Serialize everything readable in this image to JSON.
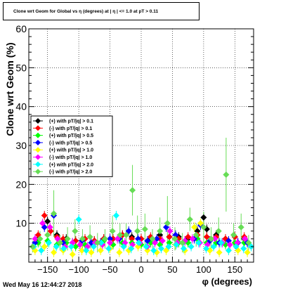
{
  "title": "Clone wrt Geom for Global vs η (degrees) at | η | <= 1.0 at pT > 0.11",
  "footer": "Wed May 16 12:44:27 2018",
  "chart_data": {
    "type": "scatter",
    "xlabel": "φ (degrees)",
    "ylabel": "Clone wrt Geom (%)",
    "xlim": [
      -180,
      180
    ],
    "ylim": [
      0,
      60
    ],
    "xticks": [
      -150,
      -100,
      -50,
      0,
      50,
      100,
      150
    ],
    "yticks": [
      10,
      20,
      30,
      40,
      50,
      60
    ],
    "grid": true,
    "legend_position": "left-middle",
    "series": [
      {
        "name": "(+) with pT/|q| > 0.1",
        "color": "#000000",
        "x": [
          -165,
          -150,
          -135,
          -120,
          -105,
          -90,
          -75,
          -60,
          -45,
          -30,
          -15,
          0,
          15,
          30,
          45,
          60,
          75,
          90,
          100,
          105,
          120,
          135,
          150,
          165
        ],
        "y": [
          6,
          10.5,
          7,
          6,
          5.5,
          6,
          5.5,
          6,
          6,
          7,
          6.5,
          6,
          6,
          7,
          6.5,
          6.5,
          6,
          8,
          11.5,
          8.5,
          7,
          6,
          6.5,
          6
        ]
      },
      {
        "name": "(-) with pT/|q| > 0.1",
        "color": "#ff0000",
        "x": [
          -165,
          -155,
          -145,
          -135,
          -125,
          -105,
          -90,
          -75,
          -60,
          -45,
          -30,
          -15,
          0,
          15,
          30,
          45,
          60,
          75,
          90,
          105,
          120,
          135,
          150,
          165
        ],
        "y": [
          7,
          12,
          8,
          6.5,
          6,
          5.5,
          6,
          5.5,
          6,
          6,
          7,
          6,
          6,
          6.5,
          6,
          6.5,
          6,
          6.5,
          7,
          6.5,
          6.5,
          6,
          6.5,
          6.5
        ]
      },
      {
        "name": "(+) with pT/|q| > 0.5",
        "color": "#00ff00",
        "x": [
          -165,
          -150,
          -135,
          -120,
          -105,
          -90,
          -75,
          -60,
          -45,
          -30,
          -15,
          0,
          15,
          30,
          45,
          60,
          75,
          90,
          105,
          120,
          135,
          150,
          165
        ],
        "y": [
          5,
          5.5,
          4.5,
          5,
          4,
          4.5,
          5,
          5.5,
          4.5,
          5,
          5,
          4.5,
          5,
          4.5,
          5,
          5,
          5,
          6,
          5,
          5,
          4.5,
          5,
          5
        ]
      },
      {
        "name": "(-) with pT/|q| > 0.5",
        "color": "#0000ff",
        "x": [
          -170,
          -155,
          -140,
          -125,
          -110,
          -95,
          -80,
          -65,
          -50,
          -35,
          -20,
          -5,
          10,
          25,
          40,
          55,
          70,
          85,
          95,
          110,
          125,
          140,
          155,
          170
        ],
        "y": [
          5,
          9,
          12,
          5,
          5,
          5.5,
          5,
          5,
          6,
          6,
          8,
          6,
          5.5,
          6,
          9,
          7,
          5.5,
          6,
          9.5,
          5.5,
          5,
          5.5,
          5,
          5
        ]
      },
      {
        "name": "(+) with pT/|q| > 1.0",
        "color": "#ffff00",
        "x": [
          -170,
          -155,
          -140,
          -125,
          -110,
          -95,
          -80,
          -65,
          -50,
          -35,
          -20,
          -5,
          10,
          25,
          40,
          55,
          70,
          85,
          95,
          110,
          125,
          140,
          155,
          170
        ],
        "y": [
          3,
          4,
          2.5,
          3,
          2,
          3,
          2.5,
          3,
          3.5,
          2.5,
          3,
          4,
          3,
          2.5,
          3,
          4.5,
          3,
          9,
          10,
          3,
          2.5,
          3,
          3,
          2.5
        ]
      },
      {
        "name": "(-) with pT/|q| > 1.0",
        "color": "#ff00ff",
        "x": [
          -170,
          -158,
          -146,
          -134,
          -122,
          -110,
          -98,
          -86,
          -74,
          -62,
          -50,
          -38,
          -26,
          -14,
          -2,
          10,
          22,
          34,
          46,
          58,
          70,
          82,
          94,
          106,
          118,
          130,
          142,
          154,
          166
        ],
        "y": [
          6,
          10,
          9,
          6,
          4,
          5,
          4.5,
          4,
          5,
          4.5,
          5,
          6,
          5,
          4.5,
          5,
          4,
          5,
          5.5,
          8,
          5,
          5.5,
          6,
          5,
          4.5,
          6,
          5,
          4.5,
          5,
          6
        ]
      },
      {
        "name": "(+) with pT/|q| > 2.0",
        "color": "#00ffff",
        "x": [
          -172,
          -160,
          -148,
          -136,
          -124,
          -112,
          -100,
          -88,
          -76,
          -64,
          -52,
          -40,
          -28,
          -16,
          -4,
          8,
          20,
          32,
          44,
          56,
          68,
          80,
          92,
          104,
          116,
          128,
          140,
          152,
          164,
          176
        ],
        "y": [
          4,
          3,
          5,
          4,
          3.5,
          4,
          11,
          3,
          4,
          5,
          3.5,
          12,
          4,
          3.5,
          5,
          4,
          3,
          3.5,
          4,
          4.5,
          3.5,
          4,
          5,
          3.5,
          4,
          5,
          3,
          4,
          3.5,
          4
        ]
      },
      {
        "name": "(-) with pT/|q| > 2.0",
        "color": "#66dd55",
        "x": [
          -174,
          -162,
          -150,
          -140,
          -130,
          -118,
          -106,
          -94,
          -82,
          -70,
          -58,
          -46,
          -34,
          -24,
          -14,
          -6,
          6,
          18,
          30,
          42,
          54,
          66,
          78,
          88,
          100,
          112,
          124,
          136,
          148,
          160,
          172
        ],
        "y": [
          4,
          6,
          7,
          12.5,
          5,
          6,
          8,
          6,
          6.5,
          5,
          6,
          8,
          7,
          7,
          18.5,
          8,
          8.5,
          6,
          8,
          10,
          6,
          5,
          11,
          7,
          9,
          6,
          8,
          22.5,
          7,
          9,
          5
        ],
        "yerr": [
          1.5,
          2,
          3,
          6,
          2,
          3,
          3,
          2.5,
          3,
          2.5,
          2.5,
          4,
          3,
          3,
          6.5,
          4,
          4,
          2.5,
          3.5,
          7,
          3,
          2.5,
          3,
          3,
          4,
          3,
          3.5,
          9.5,
          3,
          3.5,
          2
        ]
      }
    ]
  }
}
